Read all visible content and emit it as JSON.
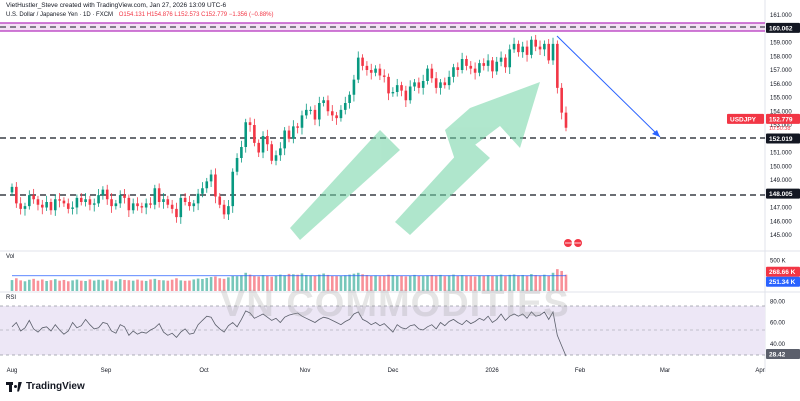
{
  "header": {
    "author_line": "VietHustler_Steve created with TradingView.com, Jan 27, 2026 13:09 UTC-6",
    "symbol_line": "U.S. Dollar / Japanese Yen · 1D · FXCM",
    "ohlc_line": "O154.131 H154.876 L152.573 C152.779 −1.356 (−0.88%)"
  },
  "branding": {
    "tradingview": "TradingView",
    "watermark": "VN COMMODITIES"
  },
  "panels": {
    "volume_label": "Vol",
    "rsi_label": "RSI"
  },
  "colors": {
    "up": "#089981",
    "down": "#f23645",
    "resistance_band": "#c050c8",
    "arrow_green": "#6fd3a4",
    "projection": "#2962ff",
    "rsi_line": "#5b5f6b",
    "rsi_bg": "#ede7f6"
  },
  "chart_data": {
    "type": "candlestick",
    "price_scale": {
      "min": 144.4,
      "max": 161.1,
      "ticks": [
        "161.000",
        "160.000",
        "159.000",
        "158.000",
        "157.000",
        "156.000",
        "155.000",
        "154.000",
        "153.000",
        "152.000",
        "151.000",
        "150.000",
        "149.000",
        "148.000",
        "147.000",
        "146.000",
        "145.000"
      ]
    },
    "x_labels": [
      "Aug",
      "Sep",
      "Oct",
      "Nov",
      "Dec",
      "2026",
      "Feb",
      "Mar",
      "Apr"
    ],
    "levels": [
      {
        "label": "160.062",
        "value": 160.062,
        "style": "band"
      },
      {
        "label": "152.019",
        "value": 152.019,
        "style": "dashed"
      },
      {
        "label": "148.005",
        "value": 148.005,
        "style": "dashed"
      }
    ],
    "last_price": {
      "label": "USDJPY",
      "value": "152.779",
      "countdown": "10:50:38"
    },
    "closes": [
      148.5,
      147.3,
      146.9,
      147.1,
      147.9,
      147.6,
      147.2,
      147.0,
      147.4,
      146.8,
      147.6,
      147.5,
      147.3,
      146.9,
      147.0,
      147.7,
      147.4,
      147.6,
      147.2,
      147.3,
      147.9,
      148.3,
      147.6,
      147.1,
      147.3,
      147.9,
      147.7,
      146.8,
      147.3,
      147.1,
      147.0,
      147.3,
      147.2,
      148.4,
      147.4,
      147.6,
      147.2,
      146.9,
      146.3,
      147.7,
      147.4,
      147.1,
      147.3,
      148.0,
      148.4,
      148.9,
      149.4,
      147.8,
      147.2,
      146.5,
      147.1,
      149.6,
      150.6,
      151.4,
      153.2,
      153.0,
      151.7,
      151.0,
      152.2,
      151.6,
      150.4,
      150.8,
      151.3,
      152.6,
      152.0,
      152.9,
      152.8,
      153.7,
      154.1,
      154.1,
      153.4,
      154.6,
      154.8,
      154.0,
      153.7,
      153.5,
      154.1,
      154.6,
      155.2,
      156.3,
      157.9,
      157.3,
      157.0,
      156.8,
      157.1,
      156.6,
      156.5,
      155.3,
      155.4,
      155.9,
      155.5,
      154.8,
      155.8,
      156.1,
      155.7,
      156.2,
      157.1,
      156.4,
      155.7,
      156.1,
      155.9,
      156.5,
      157.2,
      157.0,
      157.8,
      157.3,
      157.1,
      156.8,
      157.5,
      157.3,
      157.7,
      156.9,
      157.6,
      157.9,
      157.2,
      158.5,
      158.9,
      158.3,
      158.7,
      158.1,
      159.2,
      158.7,
      158.5,
      158.9,
      157.7,
      158.9,
      155.7,
      153.9,
      152.8
    ],
    "rsi": {
      "scale_ticks": [
        "80.00",
        "60.00",
        "40.00"
      ],
      "bands": [
        70,
        30
      ],
      "mid": 50,
      "current": "28.42",
      "values": [
        56,
        60,
        52,
        55,
        62,
        54,
        51,
        55,
        56,
        52,
        58,
        53,
        49,
        52,
        60,
        55,
        57,
        63,
        58,
        54,
        55,
        60,
        59,
        52,
        50,
        58,
        56,
        48,
        52,
        49,
        51,
        50,
        53,
        55,
        59,
        51,
        48,
        50,
        46,
        51,
        54,
        49,
        50,
        58,
        62,
        66,
        65,
        58,
        54,
        51,
        57,
        60,
        56,
        63,
        71,
        69,
        64,
        66,
        68,
        65,
        62,
        64,
        60,
        65,
        67,
        68,
        69,
        66,
        64,
        62,
        60,
        63,
        65,
        64,
        62,
        60,
        58,
        61,
        63,
        68,
        70,
        63,
        61,
        58,
        60,
        57,
        59,
        55,
        51,
        58,
        55,
        54,
        57,
        58,
        54,
        53,
        56,
        58,
        54,
        60,
        57,
        61,
        63,
        60,
        58,
        62,
        59,
        61,
        64,
        62,
        66,
        60,
        63,
        68,
        62,
        66,
        68,
        66,
        68,
        64,
        70,
        66,
        67,
        70,
        63,
        70,
        48,
        38,
        28.42
      ]
    },
    "volume": {
      "scale_ticks": [
        "500 K"
      ],
      "readout": [
        "268.66 K",
        "251.34 K"
      ],
      "values": [
        180,
        210,
        175,
        160,
        185,
        200,
        170,
        190,
        165,
        178,
        195,
        170,
        182,
        160,
        175,
        188,
        170,
        165,
        190,
        172,
        185,
        176,
        190,
        170,
        160,
        195,
        182,
        178,
        170,
        188,
        172,
        166,
        190,
        200,
        180,
        176,
        170,
        186,
        210,
        175,
        168,
        172,
        190,
        205,
        198,
        215,
        230,
        240,
        210,
        200,
        225,
        250,
        245,
        260,
        300,
        270,
        255,
        240,
        262,
        248,
        236,
        250,
        270,
        260,
        282,
        275,
        268,
        290,
        262,
        258,
        255,
        270,
        288,
        265,
        250,
        246,
        255,
        260,
        270,
        285,
        300,
        275,
        262,
        250,
        258,
        245,
        250,
        268,
        262,
        255,
        248,
        242,
        255,
        265,
        250,
        246,
        258,
        262,
        250,
        265,
        245,
        258,
        270,
        256,
        262,
        250,
        246,
        240,
        258,
        252,
        260,
        248,
        256,
        270,
        245,
        266,
        272,
        258,
        264,
        250,
        278,
        262,
        256,
        268,
        250,
        300,
        360,
        330,
        268.66
      ],
      "ma": 251.34
    }
  }
}
